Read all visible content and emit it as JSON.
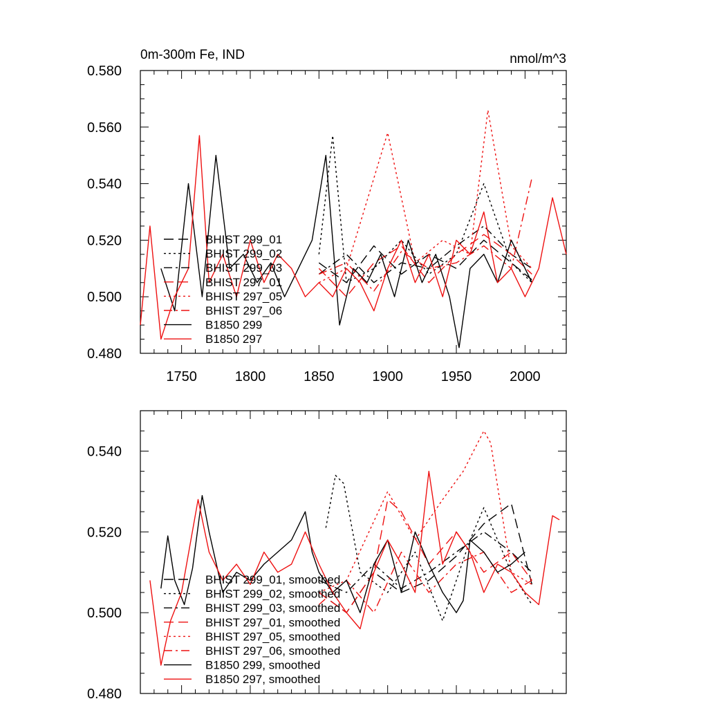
{
  "colors": {
    "black": "#000000",
    "red": "#ee1111"
  },
  "chart_data": [
    {
      "type": "line",
      "title": "0m-300m Fe, IND",
      "units": "nmol/m^3",
      "xlim": [
        1720,
        2030
      ],
      "ylim": [
        0.48,
        0.58
      ],
      "xticks": [
        "1750",
        "1800",
        "1850",
        "1900",
        "1950",
        "2000"
      ],
      "yticks": [
        "0.480",
        "0.500",
        "0.520",
        "0.540",
        "0.560",
        "0.580"
      ],
      "legend_position": "lower-left",
      "series": [
        {
          "name": "BHIST 299_01",
          "color": "black",
          "dash": "long-dash",
          "x": [
            1850,
            1870,
            1890,
            1910,
            1930,
            1950,
            1970,
            1990,
            2005
          ],
          "y": [
            0.512,
            0.505,
            0.518,
            0.508,
            0.515,
            0.51,
            0.52,
            0.512,
            0.506
          ]
        },
        {
          "name": "BHIST 299_02",
          "color": "black",
          "dash": "dotted",
          "x": [
            1850,
            1860,
            1870,
            1890,
            1910,
            1930,
            1950,
            1970,
            1990,
            2005
          ],
          "y": [
            0.515,
            0.557,
            0.505,
            0.51,
            0.52,
            0.508,
            0.515,
            0.54,
            0.512,
            0.505
          ]
        },
        {
          "name": "BHIST 299_03",
          "color": "black",
          "dash": "dash-dot",
          "x": [
            1850,
            1870,
            1890,
            1910,
            1930,
            1950,
            1970,
            1990,
            2005
          ],
          "y": [
            0.508,
            0.515,
            0.505,
            0.512,
            0.51,
            0.518,
            0.525,
            0.515,
            0.51
          ]
        },
        {
          "name": "BHIST 297_01",
          "color": "red",
          "dash": "long-dash",
          "x": [
            1850,
            1870,
            1890,
            1910,
            1930,
            1950,
            1970,
            1990,
            2005
          ],
          "y": [
            0.51,
            0.5,
            0.512,
            0.518,
            0.505,
            0.515,
            0.522,
            0.515,
            0.508
          ]
        },
        {
          "name": "BHIST 297_05",
          "color": "red",
          "dash": "dotted",
          "x": [
            1850,
            1870,
            1900,
            1920,
            1940,
            1960,
            1973,
            1990,
            2005
          ],
          "y": [
            0.505,
            0.51,
            0.558,
            0.512,
            0.52,
            0.515,
            0.566,
            0.518,
            0.51
          ]
        },
        {
          "name": "BHIST 297_06",
          "color": "red",
          "dash": "dash-dot",
          "x": [
            1850,
            1870,
            1890,
            1910,
            1930,
            1950,
            1970,
            1990,
            2005
          ],
          "y": [
            0.508,
            0.512,
            0.502,
            0.516,
            0.51,
            0.512,
            0.518,
            0.51,
            0.542
          ]
        },
        {
          "name": "B1850 299",
          "color": "black",
          "dash": "solid",
          "x": [
            1735,
            1745,
            1755,
            1765,
            1775,
            1785,
            1795,
            1805,
            1815,
            1825,
            1835,
            1845,
            1855,
            1865,
            1875,
            1885,
            1895,
            1905,
            1915,
            1925,
            1935,
            1945,
            1952,
            1960,
            1970,
            1980,
            1990,
            2000,
            2005
          ],
          "y": [
            0.51,
            0.495,
            0.54,
            0.5,
            0.55,
            0.51,
            0.515,
            0.505,
            0.512,
            0.5,
            0.51,
            0.52,
            0.55,
            0.49,
            0.51,
            0.505,
            0.515,
            0.5,
            0.52,
            0.505,
            0.515,
            0.5,
            0.482,
            0.51,
            0.515,
            0.505,
            0.52,
            0.51,
            0.505
          ]
        },
        {
          "name": "B1850 297",
          "color": "red",
          "dash": "solid",
          "x": [
            1720,
            1727,
            1735,
            1745,
            1755,
            1763,
            1770,
            1780,
            1790,
            1800,
            1810,
            1820,
            1830,
            1840,
            1850,
            1860,
            1870,
            1880,
            1890,
            1900,
            1910,
            1920,
            1930,
            1940,
            1950,
            1960,
            1970,
            1980,
            1990,
            2000,
            2010,
            2020,
            2030
          ],
          "y": [
            0.49,
            0.525,
            0.485,
            0.5,
            0.51,
            0.557,
            0.505,
            0.515,
            0.5,
            0.52,
            0.505,
            0.515,
            0.51,
            0.5,
            0.505,
            0.5,
            0.51,
            0.505,
            0.495,
            0.51,
            0.52,
            0.505,
            0.515,
            0.5,
            0.52,
            0.515,
            0.53,
            0.505,
            0.51,
            0.5,
            0.51,
            0.535,
            0.515
          ]
        }
      ]
    },
    {
      "type": "line",
      "xlim": [
        1720,
        2030
      ],
      "ylim": [
        0.48,
        0.55
      ],
      "yticks": [
        "0.480",
        "0.500",
        "0.520",
        "0.540"
      ],
      "legend_position": "lower-left",
      "series": [
        {
          "name": "BHIST 299_01, smoothed",
          "color": "black",
          "dash": "long-dash",
          "x": [
            1850,
            1870,
            1890,
            1910,
            1930,
            1950,
            1970,
            1990,
            2005
          ],
          "y": [
            0.505,
            0.5,
            0.51,
            0.505,
            0.508,
            0.514,
            0.522,
            0.527,
            0.507
          ]
        },
        {
          "name": "BHIST 299_02, smoothed",
          "color": "black",
          "dash": "dotted",
          "x": [
            1855,
            1862,
            1868,
            1880,
            1900,
            1920,
            1940,
            1960,
            1970,
            1990,
            2005
          ],
          "y": [
            0.521,
            0.534,
            0.532,
            0.51,
            0.505,
            0.515,
            0.498,
            0.518,
            0.526,
            0.51,
            0.502
          ]
        },
        {
          "name": "BHIST 299_03, smoothed",
          "color": "black",
          "dash": "dash-dot",
          "x": [
            1850,
            1870,
            1890,
            1910,
            1930,
            1950,
            1970,
            1990,
            2005
          ],
          "y": [
            0.508,
            0.505,
            0.512,
            0.506,
            0.51,
            0.515,
            0.52,
            0.515,
            0.51
          ]
        },
        {
          "name": "BHIST 297_01, smoothed",
          "color": "red",
          "dash": "long-dash",
          "x": [
            1850,
            1870,
            1890,
            1900,
            1910,
            1930,
            1950,
            1970,
            1990,
            2005
          ],
          "y": [
            0.505,
            0.5,
            0.51,
            0.528,
            0.525,
            0.512,
            0.52,
            0.51,
            0.515,
            0.508
          ]
        },
        {
          "name": "BHIST 297_05, smoothed",
          "color": "red",
          "dash": "dotted",
          "x": [
            1850,
            1870,
            1900,
            1920,
            1940,
            1955,
            1970,
            1975,
            1990,
            2005
          ],
          "y": [
            0.505,
            0.508,
            0.53,
            0.518,
            0.528,
            0.535,
            0.545,
            0.542,
            0.51,
            0.507
          ]
        },
        {
          "name": "BHIST 297_06, smoothed",
          "color": "red",
          "dash": "dash-dot",
          "x": [
            1850,
            1870,
            1890,
            1910,
            1930,
            1950,
            1970,
            1990,
            2005
          ],
          "y": [
            0.502,
            0.508,
            0.5,
            0.515,
            0.505,
            0.512,
            0.515,
            0.505,
            0.508
          ]
        },
        {
          "name": "B1850 299, smoothed",
          "color": "black",
          "dash": "solid",
          "x": [
            1735,
            1740,
            1745,
            1752,
            1758,
            1765,
            1770,
            1780,
            1790,
            1800,
            1810,
            1820,
            1830,
            1840,
            1845,
            1850,
            1860,
            1870,
            1880,
            1890,
            1900,
            1910,
            1920,
            1930,
            1940,
            1950,
            1955,
            1960,
            1970,
            1980,
            1990,
            2000
          ],
          "y": [
            0.506,
            0.519,
            0.508,
            0.502,
            0.511,
            0.529,
            0.52,
            0.505,
            0.51,
            0.508,
            0.512,
            0.515,
            0.518,
            0.525,
            0.515,
            0.51,
            0.505,
            0.508,
            0.5,
            0.512,
            0.518,
            0.505,
            0.52,
            0.512,
            0.505,
            0.5,
            0.503,
            0.518,
            0.515,
            0.51,
            0.512,
            0.515
          ]
        },
        {
          "name": "B1850 297, smoothed",
          "color": "red",
          "dash": "solid",
          "x": [
            1727,
            1735,
            1742,
            1750,
            1762,
            1770,
            1780,
            1790,
            1800,
            1810,
            1820,
            1830,
            1840,
            1850,
            1860,
            1870,
            1880,
            1890,
            1900,
            1910,
            1920,
            1930,
            1940,
            1950,
            1960,
            1970,
            1980,
            1990,
            2000,
            2010,
            2020,
            2025
          ],
          "y": [
            0.508,
            0.487,
            0.498,
            0.505,
            0.528,
            0.515,
            0.508,
            0.512,
            0.507,
            0.515,
            0.51,
            0.512,
            0.52,
            0.512,
            0.505,
            0.5,
            0.496,
            0.51,
            0.518,
            0.512,
            0.505,
            0.535,
            0.512,
            0.52,
            0.515,
            0.505,
            0.512,
            0.51,
            0.505,
            0.502,
            0.524,
            0.523
          ]
        }
      ]
    }
  ]
}
